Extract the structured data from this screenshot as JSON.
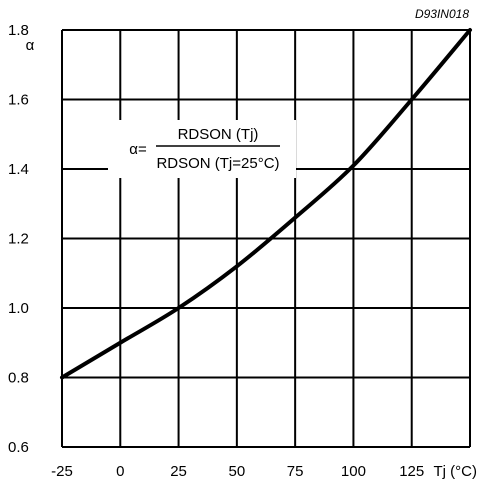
{
  "chart_data": {
    "type": "line",
    "code": "D93IN018",
    "ylabel": "α",
    "xlabel": "Tj (°C)",
    "xlim": [
      -25,
      150
    ],
    "ylim": [
      0.6,
      1.8
    ],
    "grid": true,
    "x_ticks": [
      -25,
      0,
      25,
      50,
      75,
      100,
      125
    ],
    "x_tick_labels": [
      "-25",
      "0",
      "25",
      "50",
      "75",
      "100",
      "125"
    ],
    "y_ticks": [
      0.6,
      0.8,
      1.0,
      1.2,
      1.4,
      1.6,
      1.8
    ],
    "y_tick_labels": [
      "0.6",
      "0.8",
      "1.0",
      "1.2",
      "1.4",
      "1.6",
      "1.8"
    ],
    "annotation": {
      "prefix": "α=",
      "numerator": "RDSON (Tj)",
      "denominator": "RDSON (Tj=25°C)"
    },
    "series": [
      {
        "x": [
          -25,
          0,
          25,
          50,
          75,
          100,
          125,
          150
        ],
        "y": [
          0.8,
          0.9,
          1.0,
          1.12,
          1.26,
          1.41,
          1.6,
          1.8
        ]
      }
    ],
    "colors": {
      "line": "#000000",
      "grid": "#000000",
      "annotation_bg": "#ffffff"
    }
  }
}
